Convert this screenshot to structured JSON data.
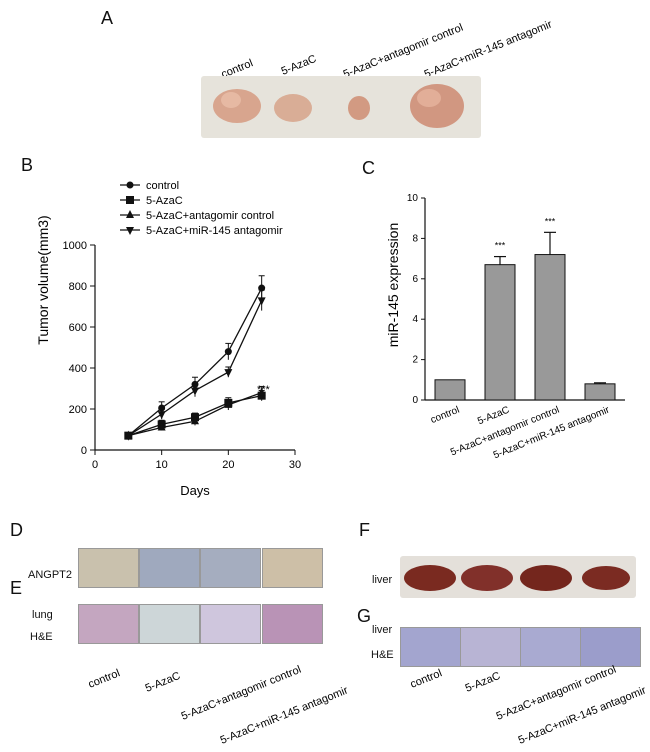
{
  "panels": {
    "A": "A",
    "B": "B",
    "C": "C",
    "D": "D",
    "E": "E",
    "F": "F",
    "G": "G"
  },
  "panel_a": {
    "groups": [
      "control",
      "5-AzaC",
      "5-AzaC+antagomir control",
      "5-AzaC+miR-145 antagomir"
    ]
  },
  "panel_d": {
    "row_label": "ANGPT2"
  },
  "panel_e": {
    "row_label_1": "lung",
    "row_label_2": "H&E"
  },
  "panel_f": {
    "row_label": "liver"
  },
  "panel_g": {
    "row_label_1": "liver",
    "row_label_2": "H&E"
  },
  "bottom_groups": [
    "control",
    "5-AzaC",
    "5-AzaC+antagomir control",
    "5-AzaC+miR-145 antagomir"
  ],
  "colors": {
    "bar_fill": "#999999",
    "line": "#111111",
    "photo_bg": "#e9e6df"
  },
  "chart_data": [
    {
      "type": "line",
      "panel": "B",
      "xlabel": "Days",
      "ylabel": "Tumor volume(mm3)",
      "xlim": [
        0,
        30
      ],
      "ylim": [
        0,
        1000
      ],
      "xticks": [
        "0",
        "10",
        "20",
        "30"
      ],
      "yticks": [
        "0",
        "200",
        "400",
        "600",
        "800",
        "1000"
      ],
      "x": [
        5,
        10,
        15,
        20,
        25
      ],
      "series": [
        {
          "name": "control",
          "marker": "circle",
          "values": [
            70,
            205,
            320,
            480,
            790
          ],
          "errors": [
            10,
            30,
            35,
            40,
            60
          ]
        },
        {
          "name": "5-AzaC",
          "marker": "square",
          "values": [
            70,
            125,
            160,
            230,
            265
          ],
          "errors": [
            10,
            20,
            20,
            25,
            25
          ]
        },
        {
          "name": "5-AzaC+antagomir control",
          "marker": "triangle-up",
          "values": [
            70,
            110,
            140,
            220,
            280
          ],
          "errors": [
            10,
            15,
            20,
            25,
            30
          ]
        },
        {
          "name": "5-AzaC+miR-145 antagomir",
          "marker": "triangle-down",
          "values": [
            70,
            175,
            290,
            380,
            730
          ],
          "errors": [
            10,
            25,
            30,
            25,
            50
          ]
        }
      ],
      "annotation": "***",
      "legend": "top-left"
    },
    {
      "type": "bar",
      "panel": "C",
      "ylabel": "miR-145 expression",
      "ylim": [
        0,
        10
      ],
      "yticks": [
        "0",
        "2",
        "4",
        "6",
        "8",
        "10"
      ],
      "categories": [
        "control",
        "5-AzaC",
        "5-AzaC+antagomir control",
        "5-AzaC+miR-145 antagomir"
      ],
      "values": [
        1.0,
        6.7,
        7.2,
        0.8
      ],
      "errors": [
        0.0,
        0.4,
        1.1,
        0.05
      ],
      "annotations": [
        "",
        "***",
        "***",
        ""
      ]
    }
  ]
}
